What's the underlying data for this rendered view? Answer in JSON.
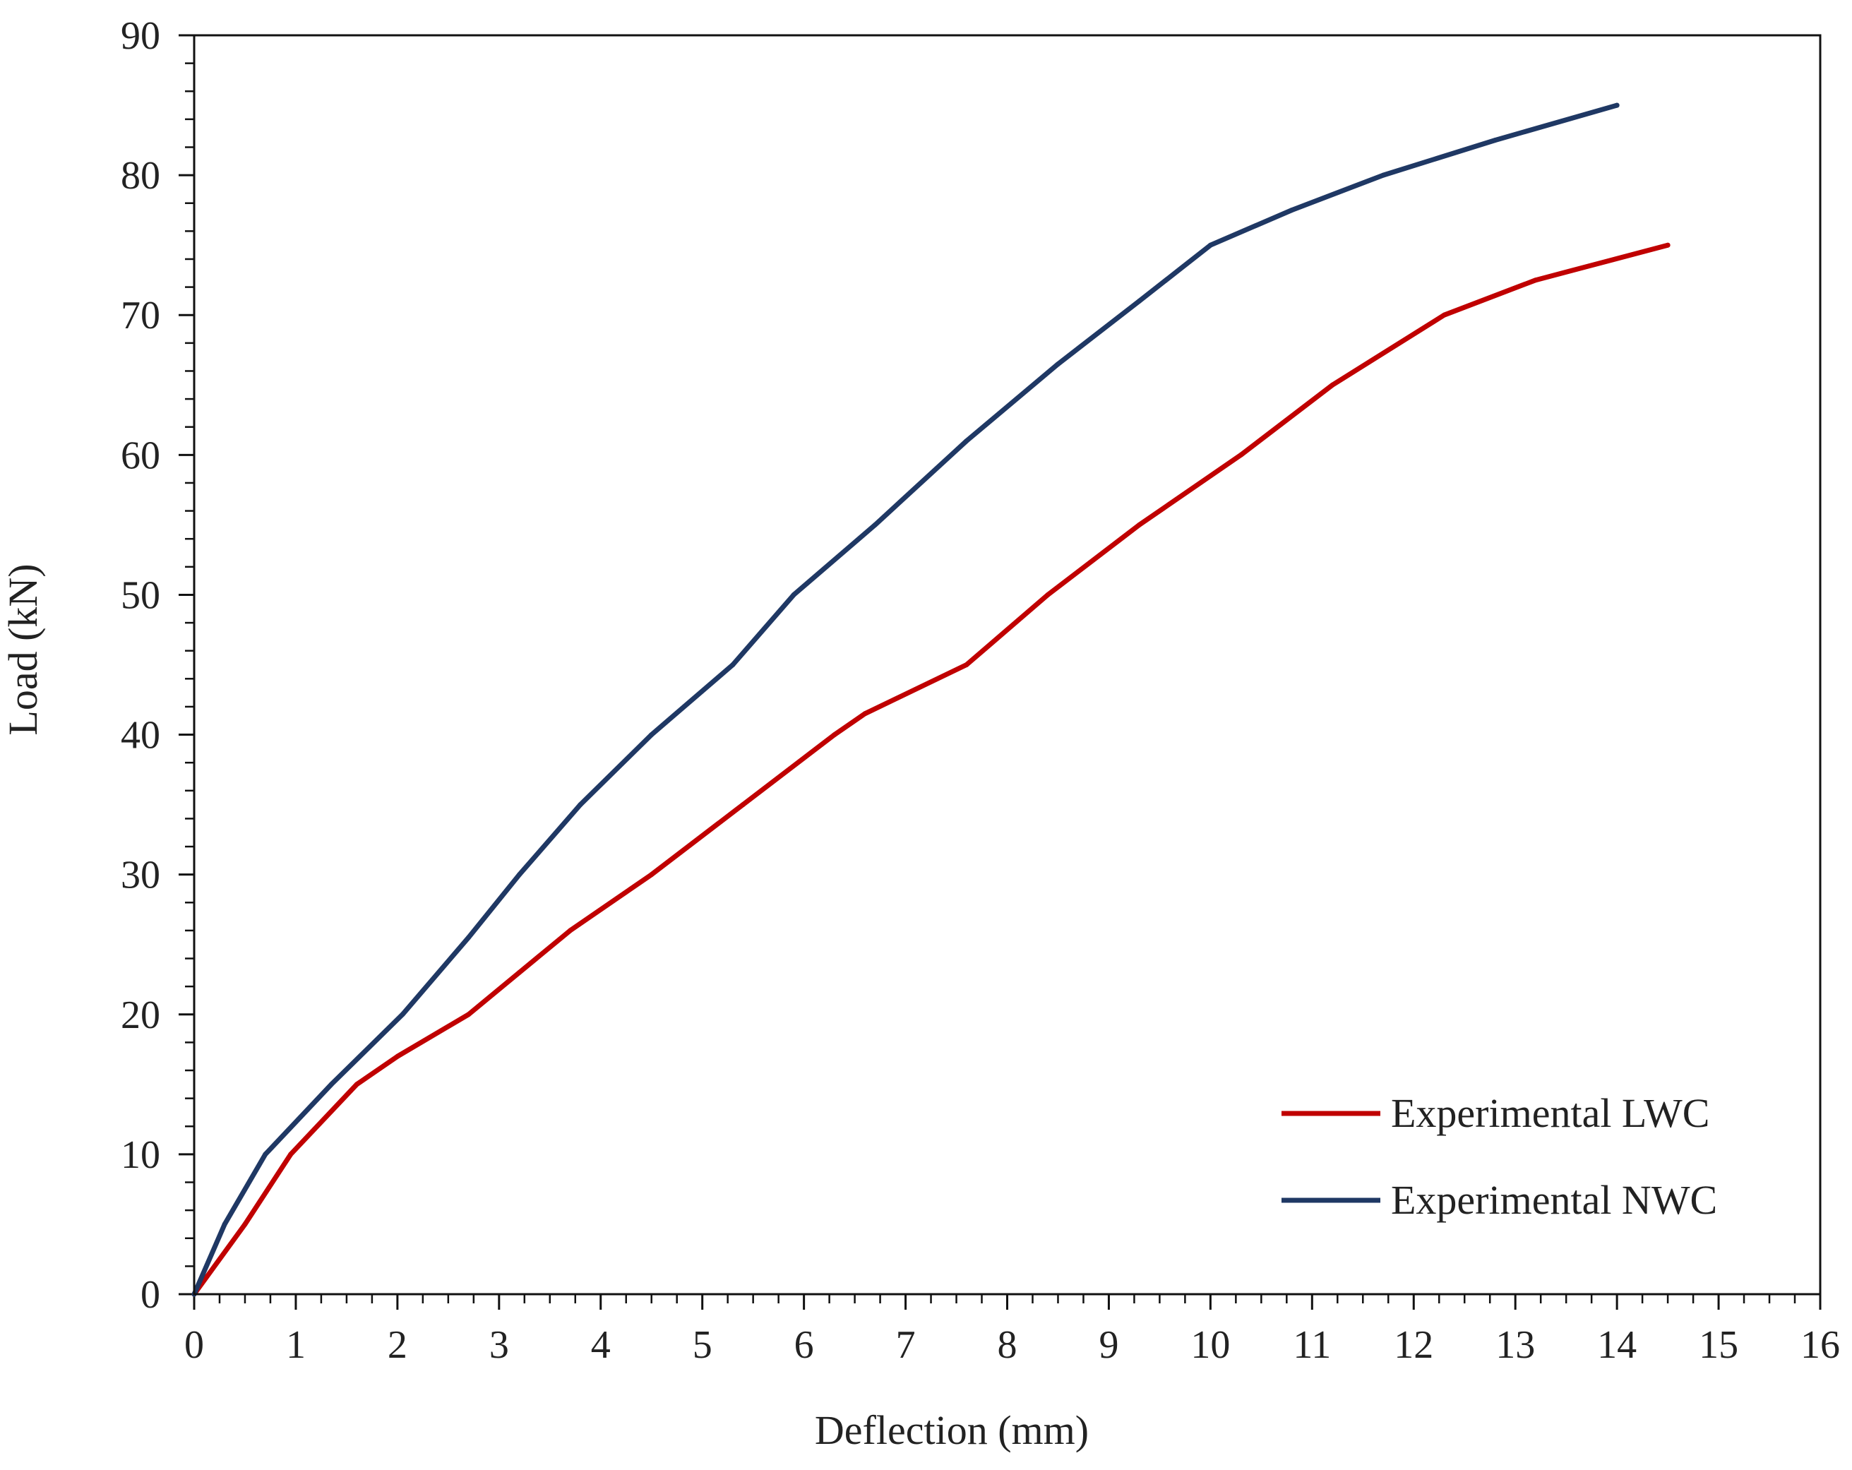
{
  "chart_data": {
    "type": "line",
    "title": "",
    "xlabel": "Deflection (mm)",
    "ylabel": "Load (kN)",
    "xlim": [
      0,
      16
    ],
    "ylim": [
      0,
      90
    ],
    "x_ticks": [
      0,
      1,
      2,
      3,
      4,
      5,
      6,
      7,
      8,
      9,
      10,
      11,
      12,
      13,
      14,
      15,
      16
    ],
    "y_ticks": [
      0,
      10,
      20,
      30,
      40,
      50,
      60,
      70,
      80,
      90
    ],
    "grid": false,
    "legend_position": "bottom-right",
    "series": [
      {
        "name": "Experimental LWC",
        "color": "#c00000",
        "points": [
          [
            0,
            0
          ],
          [
            0.5,
            5
          ],
          [
            0.95,
            10
          ],
          [
            1.6,
            15
          ],
          [
            2.0,
            17
          ],
          [
            2.7,
            20
          ],
          [
            3.2,
            23
          ],
          [
            3.7,
            26
          ],
          [
            4.5,
            30
          ],
          [
            5.4,
            35
          ],
          [
            6.3,
            40
          ],
          [
            6.6,
            41.5
          ],
          [
            7.6,
            45
          ],
          [
            8.4,
            50
          ],
          [
            9.3,
            55
          ],
          [
            10.3,
            60
          ],
          [
            11.2,
            65
          ],
          [
            12.3,
            70
          ],
          [
            13.2,
            72.5
          ],
          [
            14.5,
            75
          ]
        ]
      },
      {
        "name": "Experimental NWC",
        "color": "#1f3864",
        "points": [
          [
            0,
            0
          ],
          [
            0.3,
            5
          ],
          [
            0.7,
            10
          ],
          [
            1.35,
            15
          ],
          [
            2.05,
            20
          ],
          [
            2.7,
            25.5
          ],
          [
            3.2,
            30
          ],
          [
            3.8,
            35
          ],
          [
            4.5,
            40
          ],
          [
            5.3,
            45
          ],
          [
            5.9,
            50
          ],
          [
            6.7,
            55
          ],
          [
            7.6,
            61
          ],
          [
            8.5,
            66.5
          ],
          [
            9.3,
            71
          ],
          [
            10.0,
            75
          ],
          [
            10.8,
            77.5
          ],
          [
            11.7,
            80
          ],
          [
            12.8,
            82.5
          ],
          [
            14.0,
            85
          ]
        ]
      }
    ]
  }
}
